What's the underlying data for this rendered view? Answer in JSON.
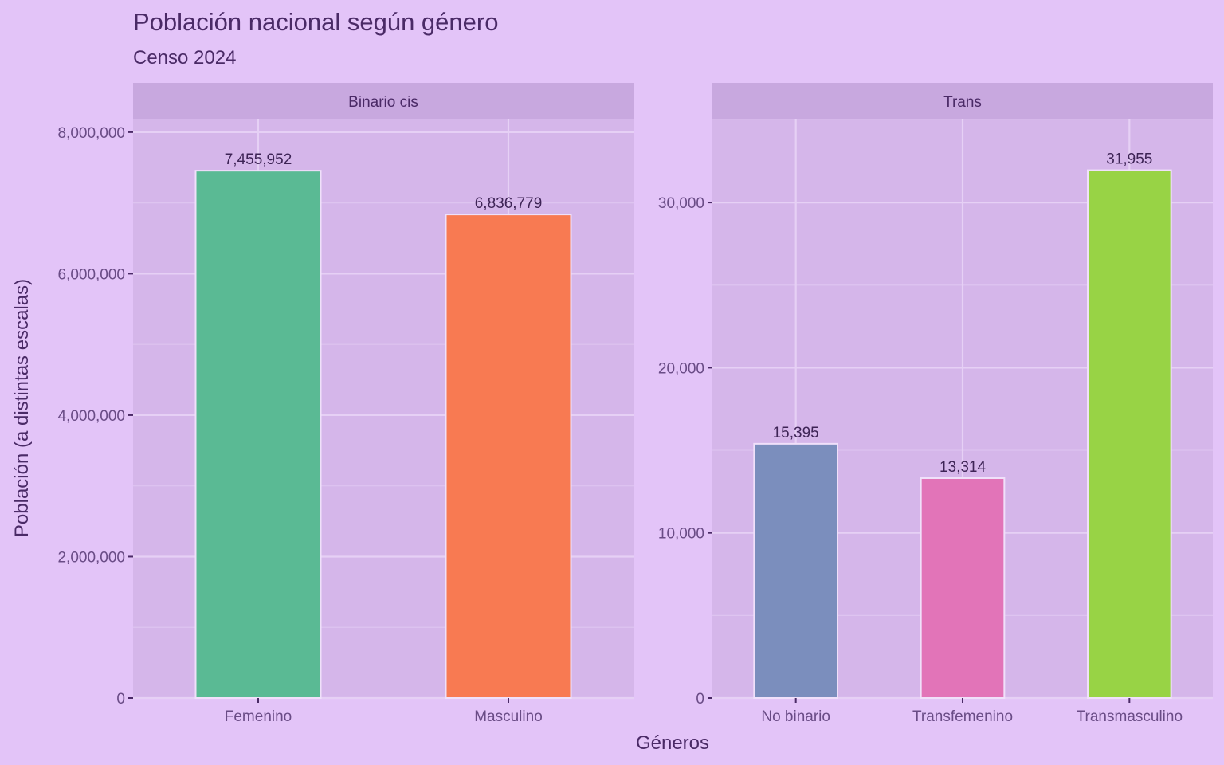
{
  "chart_data": {
    "type": "bar",
    "title": "Población nacional según género",
    "subtitle": "Censo 2024",
    "xlabel": "Géneros",
    "ylabel": "Población (a distintas escalas)",
    "grid": true,
    "facets": [
      {
        "strip": "Binario cis",
        "categories": [
          "Femenino",
          "Masculino"
        ],
        "values": [
          7455952,
          6836779
        ],
        "labels": [
          "7,455,952",
          "6,836,779"
        ],
        "colors": [
          "#5ABA94",
          "#F87A52"
        ],
        "ylim": [
          0,
          8190000
        ],
        "yticks": [
          0,
          2000000,
          4000000,
          6000000,
          8000000
        ],
        "ytick_labels": [
          "0",
          "2,000,000",
          "4,000,000",
          "6,000,000",
          "8,000,000"
        ]
      },
      {
        "strip": "Trans",
        "categories": [
          "No binario",
          "Transfemenino",
          "Transmasculino"
        ],
        "values": [
          15395,
          13314,
          31955
        ],
        "labels": [
          "15,395",
          "13,314",
          "31,955"
        ],
        "colors": [
          "#7B8EBD",
          "#E274B8",
          "#98D345"
        ],
        "ylim": [
          0,
          35070
        ],
        "yticks": [
          0,
          10000,
          20000,
          30000
        ],
        "ytick_labels": [
          "0",
          "10,000",
          "20,000",
          "30,000"
        ]
      }
    ]
  }
}
